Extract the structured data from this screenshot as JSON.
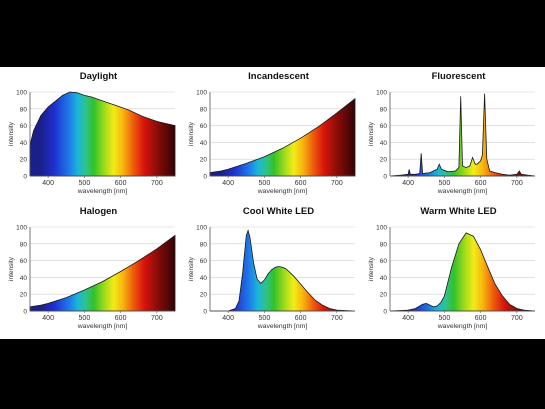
{
  "figure": {
    "background": "#000000",
    "panel_background": "#ffffff",
    "axis_color": "#555555",
    "grid_color": "#cfcfcf"
  },
  "chart_data": [
    {
      "type": "area",
      "title": "Daylight",
      "xlabel": "wavelength [nm]",
      "ylabel": "intensity",
      "xlim": [
        350,
        750
      ],
      "ylim": [
        0,
        100
      ],
      "xticks": [
        400,
        500,
        600,
        700
      ],
      "yticks": [
        0,
        20,
        40,
        60,
        80,
        100
      ],
      "grid": "horizontal",
      "fill": "visible-spectrum",
      "x": [
        350,
        360,
        380,
        400,
        420,
        440,
        460,
        480,
        500,
        520,
        540,
        560,
        580,
        600,
        620,
        640,
        660,
        680,
        700,
        720,
        740,
        750
      ],
      "values": [
        37,
        54,
        72,
        82,
        89,
        96,
        100,
        99,
        96,
        94,
        91,
        88,
        85,
        82,
        79,
        75,
        71,
        68,
        65,
        63,
        61,
        60
      ]
    },
    {
      "type": "area",
      "title": "Incandescent",
      "xlabel": "wavelength [nm]",
      "ylabel": "intensity",
      "xlim": [
        350,
        750
      ],
      "ylim": [
        0,
        100
      ],
      "xticks": [
        400,
        500,
        600,
        700
      ],
      "yticks": [
        0,
        20,
        40,
        60,
        80,
        100
      ],
      "grid": "horizontal",
      "fill": "visible-spectrum",
      "x": [
        350,
        380,
        400,
        450,
        500,
        550,
        600,
        650,
        700,
        750
      ],
      "values": [
        4,
        6,
        8,
        15,
        23,
        33,
        45,
        59,
        75,
        92
      ]
    },
    {
      "type": "area",
      "title": "Fluorescent",
      "xlabel": "wavelength [nm]",
      "ylabel": "intensity",
      "xlim": [
        350,
        750
      ],
      "ylim": [
        0,
        100
      ],
      "xticks": [
        400,
        500,
        600,
        700
      ],
      "yticks": [
        0,
        20,
        40,
        60,
        80,
        100
      ],
      "grid": "horizontal",
      "fill": "visible-spectrum",
      "x": [
        350,
        380,
        400,
        403,
        406,
        420,
        432,
        436,
        440,
        460,
        480,
        486,
        492,
        510,
        530,
        540,
        545,
        550,
        560,
        570,
        578,
        585,
        590,
        600,
        605,
        611,
        617,
        625,
        640,
        660,
        680,
        700,
        707,
        712,
        730,
        750
      ],
      "values": [
        0,
        1,
        2,
        8,
        2,
        2,
        3,
        27,
        3,
        4,
        8,
        14,
        8,
        5,
        6,
        10,
        95,
        12,
        10,
        12,
        22,
        14,
        14,
        18,
        25,
        98,
        20,
        6,
        4,
        2,
        1,
        2,
        6,
        2,
        1,
        0
      ]
    },
    {
      "type": "area",
      "title": "Halogen",
      "xlabel": "wavelength [nm]",
      "ylabel": "intensity",
      "xlim": [
        350,
        750
      ],
      "ylim": [
        0,
        100
      ],
      "xticks": [
        400,
        500,
        600,
        700
      ],
      "yticks": [
        0,
        20,
        40,
        60,
        80,
        100
      ],
      "grid": "horizontal",
      "fill": "visible-spectrum",
      "x": [
        350,
        380,
        400,
        450,
        500,
        550,
        600,
        650,
        700,
        750
      ],
      "values": [
        5,
        7,
        9,
        16,
        25,
        35,
        47,
        60,
        74,
        90
      ]
    },
    {
      "type": "area",
      "title": "Cool White LED",
      "xlabel": "wavelength [nm]",
      "ylabel": "intensity",
      "xlim": [
        350,
        750
      ],
      "ylim": [
        0,
        100
      ],
      "xticks": [
        400,
        500,
        600,
        700
      ],
      "yticks": [
        0,
        20,
        40,
        60,
        80,
        100
      ],
      "grid": "horizontal",
      "fill": "visible-spectrum",
      "x": [
        350,
        400,
        420,
        430,
        440,
        450,
        455,
        460,
        470,
        480,
        490,
        500,
        510,
        520,
        530,
        540,
        550,
        560,
        580,
        600,
        620,
        640,
        660,
        680,
        700,
        750
      ],
      "values": [
        0,
        0,
        3,
        12,
        45,
        90,
        96,
        88,
        58,
        38,
        33,
        37,
        44,
        49,
        52,
        53,
        52,
        50,
        42,
        32,
        22,
        13,
        7,
        3,
        1,
        0
      ]
    },
    {
      "type": "area",
      "title": "Warm White LED",
      "xlabel": "wavelength [nm]",
      "ylabel": "intensity",
      "xlim": [
        350,
        750
      ],
      "ylim": [
        0,
        100
      ],
      "xticks": [
        400,
        500,
        600,
        700
      ],
      "yticks": [
        0,
        20,
        40,
        60,
        80,
        100
      ],
      "grid": "horizontal",
      "fill": "visible-spectrum",
      "x": [
        350,
        400,
        420,
        440,
        450,
        460,
        470,
        480,
        490,
        500,
        520,
        540,
        560,
        580,
        600,
        620,
        640,
        660,
        680,
        700,
        720,
        750
      ],
      "values": [
        0,
        1,
        3,
        8,
        9,
        7,
        5,
        6,
        10,
        18,
        52,
        80,
        93,
        89,
        73,
        52,
        32,
        18,
        8,
        3,
        1,
        0
      ]
    }
  ]
}
